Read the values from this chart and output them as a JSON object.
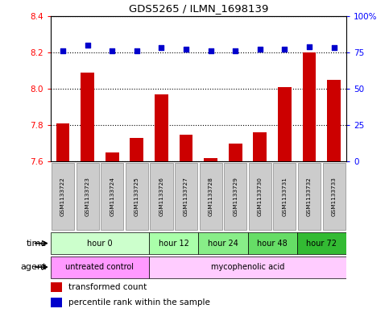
{
  "title": "GDS5265 / ILMN_1698139",
  "samples": [
    "GSM1133722",
    "GSM1133723",
    "GSM1133724",
    "GSM1133725",
    "GSM1133726",
    "GSM1133727",
    "GSM1133728",
    "GSM1133729",
    "GSM1133730",
    "GSM1133731",
    "GSM1133732",
    "GSM1133733"
  ],
  "transformed_counts": [
    7.81,
    8.09,
    7.65,
    7.73,
    7.97,
    7.75,
    7.62,
    7.7,
    7.76,
    8.01,
    8.2,
    8.05
  ],
  "percentile_ranks": [
    76,
    80,
    76,
    76,
    78,
    77,
    76,
    76,
    77,
    77,
    79,
    78
  ],
  "ylim_left": [
    7.6,
    8.4
  ],
  "ylim_right": [
    0,
    100
  ],
  "yticks_left": [
    7.6,
    7.8,
    8.0,
    8.2,
    8.4
  ],
  "yticks_right": [
    0,
    25,
    50,
    75,
    100
  ],
  "bar_color": "#cc0000",
  "dot_color": "#0000cc",
  "time_groups": [
    {
      "label": "hour 0",
      "start": 0,
      "end": 3,
      "color": "#ccffcc"
    },
    {
      "label": "hour 12",
      "start": 4,
      "end": 5,
      "color": "#aaffaa"
    },
    {
      "label": "hour 24",
      "start": 6,
      "end": 7,
      "color": "#88ee88"
    },
    {
      "label": "hour 48",
      "start": 8,
      "end": 9,
      "color": "#66dd66"
    },
    {
      "label": "hour 72",
      "start": 10,
      "end": 11,
      "color": "#33bb33"
    }
  ],
  "agent_groups": [
    {
      "label": "untreated control",
      "start": 0,
      "end": 3,
      "color": "#ff99ff"
    },
    {
      "label": "mycophenolic acid",
      "start": 4,
      "end": 11,
      "color": "#ffccff"
    }
  ],
  "legend_bar_label": "transformed count",
  "legend_dot_label": "percentile rank within the sample",
  "sample_box_color": "#cccccc",
  "label_time": "time",
  "label_agent": "agent"
}
